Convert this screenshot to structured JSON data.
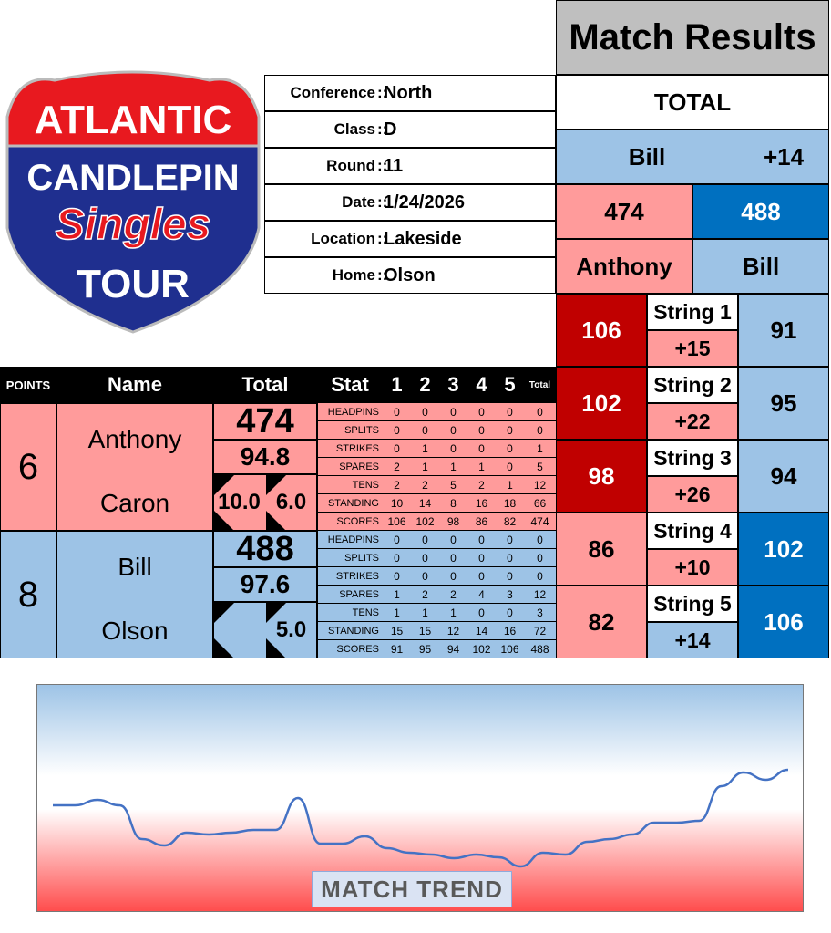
{
  "logo": {
    "line1": "ATLANTIC",
    "line2": "CANDLEPIN",
    "line3": "Singles",
    "line4": "TOUR"
  },
  "info": {
    "separator": "::",
    "rows": [
      {
        "label": "Conference",
        "value": "North"
      },
      {
        "label": "Class",
        "value": "D"
      },
      {
        "label": "Round",
        "value": "11"
      },
      {
        "label": "Date",
        "value": "1/24/2026"
      },
      {
        "label": "Location",
        "value": "Lakeside"
      },
      {
        "label": "Home",
        "value": "Olson"
      }
    ]
  },
  "results": {
    "title": "Match Results",
    "total_label": "TOTAL",
    "leader": "Bill",
    "margin": "+14",
    "totals": [
      474,
      488
    ],
    "names": [
      "Anthony",
      "Bill"
    ]
  },
  "strings": [
    {
      "label": "String 1",
      "home": 106,
      "away": 91,
      "diff": "+15",
      "winner": 0,
      "leader": 0
    },
    {
      "label": "String 2",
      "home": 102,
      "away": 95,
      "diff": "+22",
      "winner": 0,
      "leader": 0
    },
    {
      "label": "String 3",
      "home": 98,
      "away": 94,
      "diff": "+26",
      "winner": 0,
      "leader": 0
    },
    {
      "label": "String 4",
      "home": 86,
      "away": 102,
      "diff": "+10",
      "winner": 1,
      "leader": 0
    },
    {
      "label": "String 5",
      "home": 82,
      "away": 106,
      "diff": "+14",
      "winner": 1,
      "leader": 1
    }
  ],
  "table": {
    "headers": {
      "points": "POINTS",
      "name": "Name",
      "total": "Total",
      "stat": "Stat",
      "games": [
        "1",
        "2",
        "3",
        "4",
        "5"
      ],
      "sum": "Total"
    },
    "stats": [
      "HEADPINS",
      "SPLITS",
      "STRIKES",
      "SPARES",
      "TENS",
      "STANDING",
      "SCORES"
    ],
    "players": [
      {
        "points": 6,
        "first": "Anthony",
        "last": "Caron",
        "total": 474,
        "average": 94.8,
        "handicap": [
          "10.0",
          "6.0"
        ],
        "rows": [
          [
            0,
            0,
            0,
            0,
            0,
            0
          ],
          [
            0,
            0,
            0,
            0,
            0,
            0
          ],
          [
            0,
            1,
            0,
            0,
            0,
            1
          ],
          [
            2,
            1,
            1,
            1,
            0,
            5
          ],
          [
            2,
            2,
            5,
            2,
            1,
            12
          ],
          [
            10,
            14,
            8,
            16,
            18,
            66
          ],
          [
            106,
            102,
            98,
            86,
            82,
            474
          ]
        ]
      },
      {
        "points": 8,
        "first": "Bill",
        "last": "Olson",
        "total": 488,
        "average": 97.6,
        "handicap": [
          null,
          "5.0"
        ],
        "rows": [
          [
            0,
            0,
            0,
            0,
            0,
            0
          ],
          [
            0,
            0,
            0,
            0,
            0,
            0
          ],
          [
            0,
            0,
            0,
            0,
            0,
            0
          ],
          [
            1,
            2,
            2,
            4,
            3,
            12
          ],
          [
            1,
            1,
            1,
            0,
            0,
            3
          ],
          [
            15,
            15,
            12,
            14,
            16,
            72
          ],
          [
            91,
            95,
            94,
            102,
            106,
            488
          ]
        ]
      }
    ]
  },
  "trend": {
    "label": "MATCH TREND",
    "color": "#4472c4",
    "values": [
      -8,
      -8,
      -2,
      -8,
      -45,
      -52,
      -38,
      -40,
      -38,
      -35,
      -35,
      0,
      -50,
      -50,
      -42,
      -55,
      -60,
      -62,
      -66,
      -62,
      -65,
      -75,
      -60,
      -62,
      -48,
      -45,
      -40,
      -27,
      -27,
      -25,
      13,
      28,
      20,
      31
    ]
  }
}
